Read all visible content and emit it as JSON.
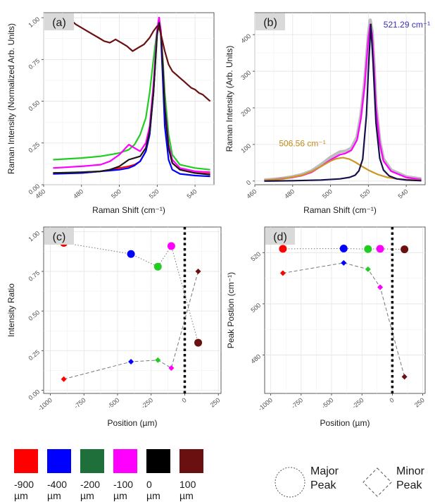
{
  "chart_data": [
    {
      "panel": "(a)",
      "type": "line",
      "xlabel": "Raman Shift (cm⁻¹)",
      "ylabel": "Raman Intensity (Normalized Arb. Units)",
      "xlim": [
        460,
        550
      ],
      "ylim": [
        0,
        1.03
      ],
      "xticks": [
        460,
        480,
        500,
        520,
        540
      ],
      "yticks": [
        0,
        0.25,
        0.5,
        0.75,
        1.0
      ],
      "ytick_labels": [
        "0.00",
        "0.25",
        "0.50",
        "0.75",
        "1.00"
      ],
      "grid": true,
      "series": [
        {
          "color": "#ff0000",
          "x": [
            465,
            480,
            490,
            495,
            500,
            505,
            508,
            511,
            514,
            516,
            518,
            520,
            521,
            522,
            523,
            524,
            526,
            528,
            532,
            540,
            548
          ],
          "y": [
            0.07,
            0.07,
            0.08,
            0.09,
            0.1,
            0.11,
            0.12,
            0.14,
            0.2,
            0.3,
            0.55,
            0.92,
            1.0,
            0.9,
            0.7,
            0.45,
            0.22,
            0.13,
            0.09,
            0.07,
            0.065
          ]
        },
        {
          "color": "#0000ff",
          "x": [
            465,
            480,
            490,
            495,
            500,
            505,
            508,
            511,
            514,
            516,
            518,
            520,
            521,
            522,
            523,
            524,
            526,
            528,
            532,
            540,
            548
          ],
          "y": [
            0.065,
            0.07,
            0.08,
            0.085,
            0.09,
            0.1,
            0.115,
            0.14,
            0.2,
            0.3,
            0.55,
            0.92,
            1.0,
            0.88,
            0.62,
            0.35,
            0.15,
            0.09,
            0.065,
            0.055,
            0.05
          ]
        },
        {
          "color": "#22cc22",
          "x": [
            465,
            480,
            490,
            495,
            500,
            505,
            508,
            511,
            514,
            516,
            518,
            520,
            521,
            522,
            523,
            524,
            526,
            528,
            532,
            540,
            548
          ],
          "y": [
            0.15,
            0.16,
            0.17,
            0.18,
            0.19,
            0.21,
            0.24,
            0.3,
            0.4,
            0.55,
            0.75,
            0.93,
            0.95,
            0.9,
            0.75,
            0.55,
            0.3,
            0.18,
            0.12,
            0.1,
            0.09
          ]
        },
        {
          "color": "#ff00ff",
          "x": [
            465,
            480,
            490,
            495,
            500,
            505,
            508,
            511,
            514,
            516,
            518,
            520,
            521,
            522,
            523,
            524,
            526,
            528,
            532,
            540,
            548
          ],
          "y": [
            0.1,
            0.11,
            0.12,
            0.14,
            0.18,
            0.24,
            0.22,
            0.2,
            0.25,
            0.35,
            0.6,
            0.93,
            1.0,
            0.92,
            0.72,
            0.48,
            0.24,
            0.15,
            0.1,
            0.08,
            0.075
          ]
        },
        {
          "color": "#1a1a1a",
          "x": [
            465,
            480,
            490,
            495,
            500,
            505,
            508,
            511,
            514,
            516,
            518,
            520,
            521,
            522,
            523,
            524,
            526,
            528,
            532,
            540,
            548
          ],
          "y": [
            0.07,
            0.075,
            0.08,
            0.09,
            0.11,
            0.15,
            0.16,
            0.17,
            0.22,
            0.32,
            0.55,
            0.9,
            0.97,
            0.9,
            0.7,
            0.46,
            0.22,
            0.13,
            0.09,
            0.07,
            0.06
          ]
        },
        {
          "color": "#6b1010",
          "x": [
            465,
            468,
            471,
            474,
            477,
            480,
            483,
            486,
            489,
            492,
            495,
            498,
            501,
            504,
            507,
            510,
            513,
            516,
            518,
            520,
            521,
            522,
            524,
            526,
            528,
            530,
            532,
            534,
            536,
            538,
            540,
            542,
            544,
            546,
            548
          ],
          "y": [
            0.98,
            1.0,
            0.97,
            0.99,
            0.96,
            0.94,
            0.92,
            0.9,
            0.88,
            0.86,
            0.85,
            0.87,
            0.85,
            0.83,
            0.8,
            0.82,
            0.84,
            0.88,
            0.92,
            0.95,
            0.94,
            0.9,
            0.8,
            0.72,
            0.68,
            0.66,
            0.64,
            0.62,
            0.6,
            0.58,
            0.57,
            0.55,
            0.54,
            0.52,
            0.5
          ]
        }
      ]
    },
    {
      "panel": "(b)",
      "type": "line",
      "xlabel": "Raman Shift (cm⁻¹)",
      "ylabel": "Raman Intensity (Arb. Units)",
      "xlim": [
        460,
        550
      ],
      "ylim": [
        -10,
        460
      ],
      "xticks": [
        460,
        480,
        500,
        520,
        540
      ],
      "yticks": [
        0,
        100,
        200,
        300,
        400
      ],
      "grid": true,
      "annotations": [
        {
          "text": "521.29 cm⁻¹",
          "color": "#3a2dbf"
        },
        {
          "text": "506.56 cm⁻¹",
          "color": "#c28a1a"
        }
      ],
      "series": [
        {
          "color": "#bdbdbd",
          "x": [
            465,
            470,
            475,
            480,
            485,
            490,
            495,
            500,
            505,
            508,
            511,
            514,
            516,
            518,
            520,
            521,
            522,
            523,
            524,
            526,
            528,
            532,
            540,
            548
          ],
          "y": [
            3,
            5,
            8,
            12,
            18,
            28,
            45,
            65,
            80,
            82,
            90,
            120,
            180,
            270,
            400,
            440,
            410,
            320,
            210,
            110,
            60,
            30,
            12,
            6
          ]
        },
        {
          "color": "#ff00ff",
          "x": [
            465,
            470,
            475,
            480,
            485,
            490,
            495,
            500,
            505,
            508,
            511,
            514,
            516,
            518,
            520,
            521,
            522,
            523,
            524,
            526,
            528,
            532,
            540,
            548
          ],
          "y": [
            2,
            4,
            7,
            10,
            15,
            24,
            40,
            58,
            72,
            76,
            84,
            112,
            170,
            260,
            390,
            428,
            400,
            310,
            200,
            104,
            55,
            27,
            10,
            4
          ]
        },
        {
          "color": "#cc9620",
          "x": [
            465,
            475,
            485,
            490,
            495,
            500,
            503,
            506.56,
            510,
            513,
            516,
            520,
            525,
            530,
            535,
            540,
            548
          ],
          "y": [
            2,
            6,
            16,
            26,
            40,
            55,
            61,
            64,
            60,
            52,
            42,
            30,
            18,
            10,
            6,
            4,
            2
          ]
        },
        {
          "color": "#14104a",
          "x": [
            465,
            480,
            495,
            505,
            510,
            513,
            515,
            517,
            519,
            520,
            521.29,
            522.5,
            524,
            526,
            528,
            531,
            535,
            540,
            548
          ],
          "y": [
            0,
            1,
            3,
            6,
            10,
            16,
            28,
            60,
            180,
            300,
            428,
            320,
            160,
            62,
            30,
            14,
            6,
            3,
            1
          ]
        }
      ]
    },
    {
      "panel": "(c)",
      "type": "scatter",
      "xlabel": "Position (µm)",
      "ylabel": "Intensity Ratio",
      "xlim": [
        -1050,
        270
      ],
      "ylim": [
        -0.02,
        1.03
      ],
      "xticks": [
        -1000,
        -750,
        -500,
        -250,
        0,
        250
      ],
      "yticks": [
        0,
        0.25,
        0.5,
        0.75,
        1.0
      ],
      "ytick_labels": [
        "0.00",
        "0.25",
        "0.50",
        "0.75",
        "1.00"
      ],
      "vline": 0,
      "grid": true,
      "series": [
        {
          "marker": "circle",
          "x": [
            -900,
            -400,
            -200,
            -100,
            100
          ],
          "y": [
            0.93,
            0.86,
            0.78,
            0.91,
            0.3
          ],
          "colors": [
            "#ff0000",
            "#0000ff",
            "#22cc22",
            "#ff00ff",
            "#6b1010"
          ]
        },
        {
          "marker": "diamond",
          "x": [
            -900,
            -400,
            -200,
            -100,
            100
          ],
          "y": [
            0.07,
            0.18,
            0.19,
            0.14,
            0.75
          ],
          "colors": [
            "#ff0000",
            "#0000ff",
            "#22cc22",
            "#ff00ff",
            "#6b1010"
          ]
        }
      ]
    },
    {
      "panel": "(d)",
      "type": "scatter",
      "xlabel": "Position (µm)",
      "ylabel": "Peak Postion (cm⁻¹)",
      "xlim": [
        -1050,
        270
      ],
      "ylim": [
        465,
        530
      ],
      "xticks": [
        -1000,
        -750,
        -500,
        -250,
        0,
        250
      ],
      "yticks": [
        480,
        500,
        520
      ],
      "vline": 0,
      "grid": true,
      "series": [
        {
          "marker": "circle",
          "x": [
            -900,
            -400,
            -200,
            -100,
            100
          ],
          "y": [
            521.5,
            521.6,
            521.4,
            521.5,
            521.3
          ],
          "colors": [
            "#ff0000",
            "#0000ff",
            "#22cc22",
            "#ff00ff",
            "#6b1010"
          ]
        },
        {
          "marker": "diamond",
          "x": [
            -900,
            -400,
            -200,
            -100,
            100
          ],
          "y": [
            512,
            516,
            513.5,
            506.5,
            471.5
          ],
          "colors": [
            "#ff0000",
            "#0000ff",
            "#22cc22",
            "#ff00ff",
            "#6b1010"
          ]
        }
      ]
    }
  ],
  "legend": {
    "colors": [
      {
        "color": "#ff0000",
        "label_line1": "-900",
        "label_line2": "µm"
      },
      {
        "color": "#0000ff",
        "label_line1": "-400",
        "label_line2": "µm"
      },
      {
        "color": "#1f6f3a",
        "label_line1": "-200",
        "label_line2": "µm"
      },
      {
        "color": "#ff00ff",
        "label_line1": "-100",
        "label_line2": "µm"
      },
      {
        "color": "#000000",
        "label_line1": "0",
        "label_line2": "µm"
      },
      {
        "color": "#6b1010",
        "label_line1": "100",
        "label_line2": "µm"
      }
    ],
    "shapes": [
      {
        "shape": "circle",
        "label_line1": "Major",
        "label_line2": "Peak"
      },
      {
        "shape": "diamond",
        "label_line1": "Minor",
        "label_line2": "Peak"
      }
    ]
  }
}
